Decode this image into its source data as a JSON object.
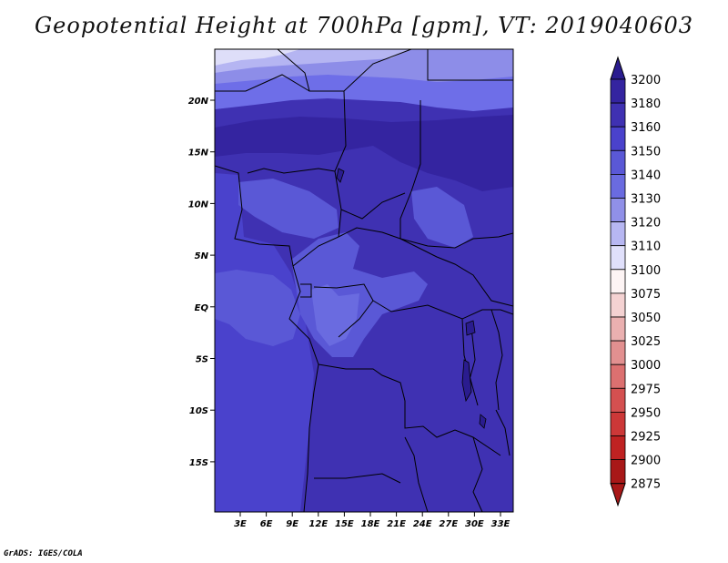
{
  "title": "Geopotential Height at 700hPa [gpm], VT: 2019040603",
  "credit": "GrADS: IGES/COLA",
  "map": {
    "lat_ticks": [
      "20N",
      "15N",
      "10N",
      "5N",
      "EQ",
      "5S",
      "10S",
      "15S"
    ],
    "lon_ticks": [
      "3E",
      "6E",
      "9E",
      "12E",
      "15E",
      "18E",
      "21E",
      "24E",
      "27E",
      "30E",
      "33E"
    ],
    "fill_colors": {
      "ocean_3150": "#4a42cc",
      "land_3160": "#3f31b2",
      "west_3140": "#5a58d6",
      "low_3130": "#6a6be0",
      "north_3170": "#3424a0",
      "north_band1": "#6e6ee8",
      "north_band2": "#8d8de8",
      "north_band3": "#b5b5f2",
      "north_band4": "#dedef9"
    }
  },
  "colorbar": {
    "levels": [
      "3200",
      "3180",
      "3160",
      "3150",
      "3140",
      "3130",
      "3120",
      "3110",
      "3100",
      "3075",
      "3050",
      "3025",
      "3000",
      "2975",
      "2950",
      "2925",
      "2900",
      "2875"
    ],
    "colors": [
      "#2a1c8f",
      "#3424a0",
      "#3f31b2",
      "#4a42cc",
      "#5a58d6",
      "#6a6be0",
      "#9090e8",
      "#b7b7f2",
      "#e0e0fb",
      "#fdf4f4",
      "#f4d2d2",
      "#eab0b0",
      "#e29090",
      "#dc7070",
      "#d45050",
      "#cc3838",
      "#bf2222",
      "#a81818"
    ]
  }
}
